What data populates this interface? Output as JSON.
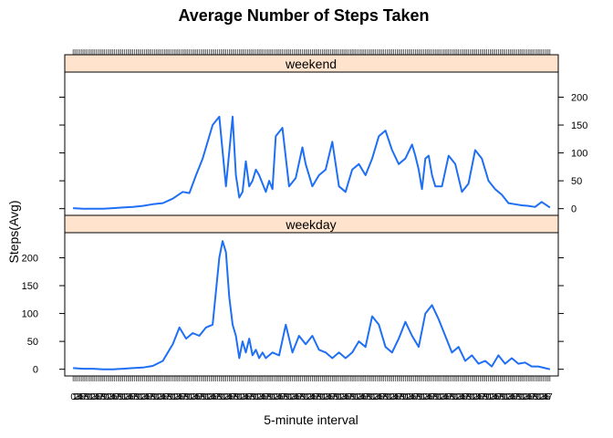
{
  "chart_data": {
    "type": "line",
    "title": "Average Number of Steps Taken",
    "xlabel": "5-minute interval",
    "ylabel": "Steps(Avg)",
    "ylim": [
      -12,
      245
    ],
    "yticks": [
      0,
      50,
      100,
      150,
      200
    ],
    "xlim": [
      -5,
      292
    ],
    "colors": {
      "line": "#1f6ff5",
      "strip": "#ffe3cc",
      "frame": "#000000"
    },
    "x_tick_note": "288 interval tick labels overplotted (unreadable)",
    "panels": [
      {
        "name": "weekend",
        "strip_label": "weekend",
        "y_axis_side": "right",
        "series": [
          {
            "x": [
              0,
              6,
              12,
              18,
              24,
              30,
              36,
              42,
              48,
              54,
              60,
              66,
              70,
              74,
              78,
              84,
              88,
              92,
              96,
              98,
              100,
              102,
              104,
              106,
              108,
              110,
              112,
              114,
              116,
              118,
              120,
              122,
              126,
              130,
              134,
              138,
              140,
              144,
              148,
              152,
              156,
              160,
              164,
              168,
              172,
              176,
              180,
              184,
              188,
              192,
              196,
              200,
              204,
              206,
              208,
              210,
              212,
              214,
              216,
              218,
              222,
              226,
              230,
              234,
              238,
              242,
              246,
              250,
              254,
              258,
              262,
              266,
              270,
              274,
              278,
              282,
              287
            ],
            "y": [
              1,
              0,
              0,
              0,
              1,
              2,
              3,
              5,
              8,
              10,
              18,
              30,
              28,
              60,
              90,
              150,
              165,
              40,
              165,
              60,
              20,
              30,
              85,
              40,
              50,
              70,
              60,
              45,
              30,
              50,
              35,
              130,
              145,
              40,
              55,
              110,
              80,
              40,
              60,
              70,
              120,
              40,
              30,
              70,
              80,
              60,
              90,
              130,
              140,
              105,
              80,
              90,
              115,
              95,
              70,
              35,
              90,
              95,
              60,
              40,
              40,
              95,
              80,
              30,
              45,
              105,
              90,
              50,
              35,
              25,
              10,
              8,
              6,
              5,
              3,
              12,
              2
            ]
          }
        ]
      },
      {
        "name": "weekday",
        "strip_label": "weekday",
        "y_axis_side": "left",
        "series": [
          {
            "x": [
              0,
              6,
              12,
              18,
              24,
              30,
              36,
              42,
              48,
              54,
              60,
              64,
              68,
              72,
              76,
              80,
              84,
              88,
              90,
              92,
              94,
              96,
              98,
              100,
              102,
              104,
              106,
              108,
              110,
              112,
              114,
              116,
              120,
              124,
              128,
              132,
              136,
              140,
              144,
              148,
              152,
              156,
              160,
              164,
              168,
              172,
              176,
              180,
              184,
              188,
              192,
              196,
              200,
              204,
              208,
              212,
              216,
              220,
              224,
              228,
              232,
              236,
              240,
              244,
              248,
              252,
              256,
              260,
              264,
              268,
              272,
              276,
              280,
              284,
              287
            ],
            "y": [
              2,
              1,
              1,
              0,
              0,
              1,
              2,
              3,
              6,
              15,
              45,
              75,
              55,
              65,
              60,
              75,
              80,
              200,
              230,
              210,
              130,
              80,
              60,
              20,
              50,
              30,
              55,
              25,
              35,
              20,
              30,
              20,
              30,
              25,
              80,
              30,
              60,
              45,
              60,
              35,
              30,
              20,
              30,
              20,
              30,
              50,
              40,
              95,
              80,
              40,
              30,
              55,
              85,
              60,
              40,
              100,
              115,
              90,
              60,
              30,
              40,
              15,
              25,
              10,
              15,
              5,
              25,
              10,
              20,
              10,
              12,
              5,
              5,
              2,
              0
            ]
          }
        ]
      }
    ]
  }
}
